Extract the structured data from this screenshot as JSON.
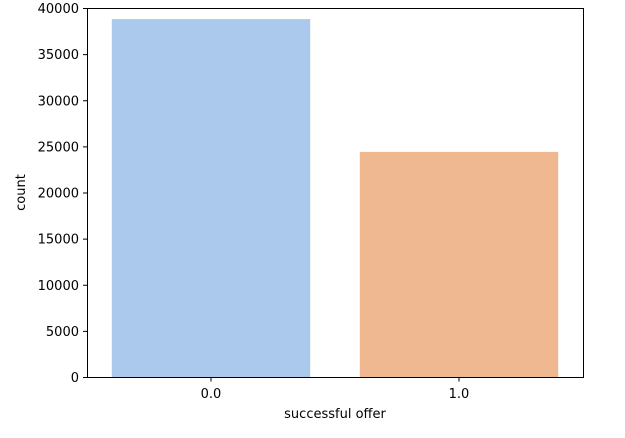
{
  "chart_data": {
    "type": "bar",
    "title": "",
    "xlabel": "successful offer",
    "ylabel": "count",
    "categories": [
      "0.0",
      "1.0"
    ],
    "values": [
      38800,
      24400
    ],
    "colors": [
      "#abc9ed",
      "#f0b890"
    ],
    "ylim": [
      0,
      40000
    ],
    "yticks": [
      0,
      5000,
      10000,
      15000,
      20000,
      25000,
      30000,
      35000,
      40000
    ],
    "ytick_labels": [
      "0",
      "5000",
      "10000",
      "15000",
      "20000",
      "25000",
      "30000",
      "35000",
      "40000"
    ],
    "grid": false,
    "legend": "none"
  }
}
